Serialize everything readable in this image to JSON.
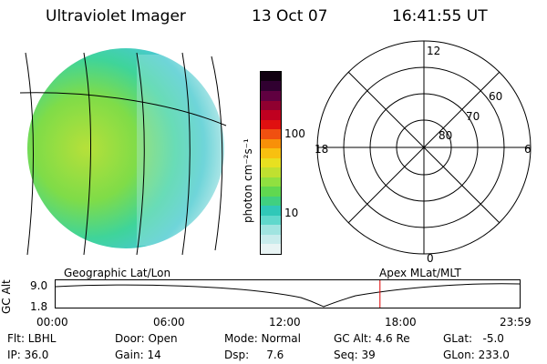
{
  "header": {
    "title": "Ultraviolet Imager",
    "date": "13 Oct 07",
    "time": "16:41:55 UT"
  },
  "colorbar": {
    "unit_label": "photon cm⁻²s⁻¹",
    "tick_100": "100",
    "tick_10": "10",
    "colors": [
      "#e8f4f4",
      "#c8ecec",
      "#a0e4e0",
      "#60d8cc",
      "#30c8b8",
      "#40d080",
      "#60d850",
      "#90e040",
      "#c0e030",
      "#e8e020",
      "#f8c010",
      "#f89008",
      "#f05010",
      "#e01010",
      "#c00020",
      "#900030",
      "#600040",
      "#300030",
      "#100010"
    ]
  },
  "grid": {
    "labels": [
      "12",
      "60",
      "70",
      "80",
      "18",
      "6",
      "0"
    ]
  },
  "timeline": {
    "left_title": "Geographic Lat/Lon",
    "right_title": "Apex  MLat/MLT",
    "ylabel": "GC Alt",
    "ytick_top": "9.0",
    "ytick_bottom": "1.8",
    "times": [
      "00:00",
      "06:00",
      "12:00",
      "18:00",
      "23:59"
    ],
    "marker_time_fraction": 0.699
  },
  "info": {
    "flt": "Flt: LBHL",
    "ip": "IP: 36.0",
    "door": "Door: Open",
    "gain": "Gain: 14",
    "mode": "Mode: Normal",
    "dsp": "Dsp:     7.6",
    "gcalt": "GC Alt: 4.6 Re",
    "seq": "Seq: 39",
    "glat": "GLat:   -5.0",
    "glon": "GLon: 233.0"
  }
}
